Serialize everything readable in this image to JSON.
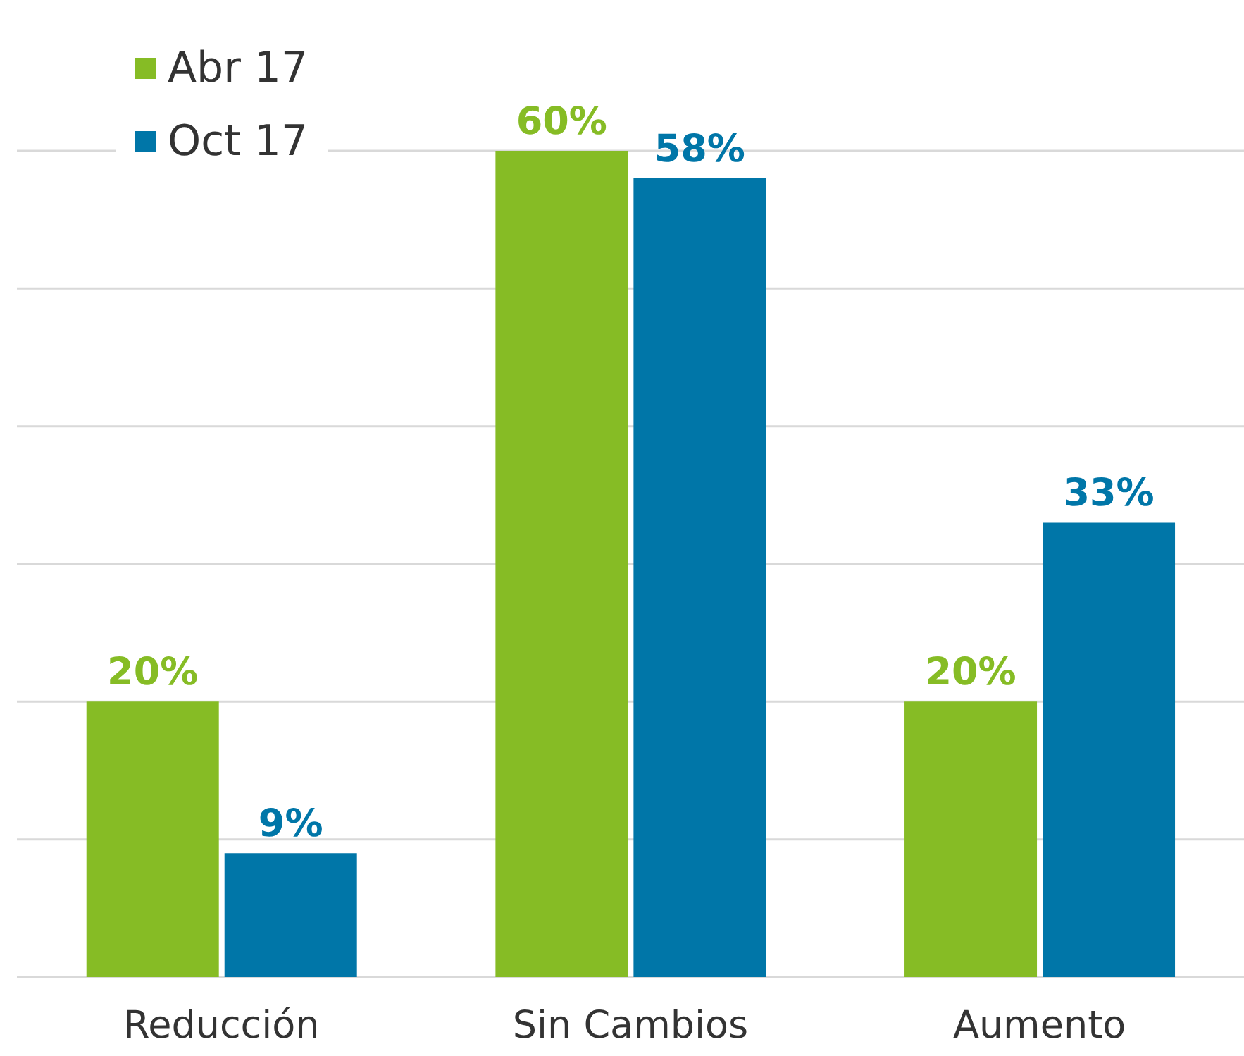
{
  "chart_data": {
    "type": "bar",
    "categories": [
      "Reducción",
      "Sin Cambios",
      "Aumento"
    ],
    "series": [
      {
        "name": "Abr 17",
        "color": "#86bc25",
        "values": [
          20,
          60,
          20
        ],
        "value_labels": [
          "20%",
          "60%",
          "20%"
        ]
      },
      {
        "name": "Oct 17",
        "color": "#0076a8",
        "values": [
          9,
          58,
          33
        ],
        "value_labels": [
          "9%",
          "58%",
          "33%"
        ]
      }
    ],
    "yticks": [
      {
        "value": 0,
        "label": null
      },
      {
        "value": 10,
        "label": null
      },
      {
        "value": 20,
        "label": null
      },
      {
        "value": 30,
        "label": null
      },
      {
        "value": 40,
        "label": null
      },
      {
        "value": 50,
        "label": null
      },
      {
        "value": 60,
        "label": null
      }
    ],
    "grid": "y",
    "tick_labels": "x",
    "legend": "top left"
  }
}
